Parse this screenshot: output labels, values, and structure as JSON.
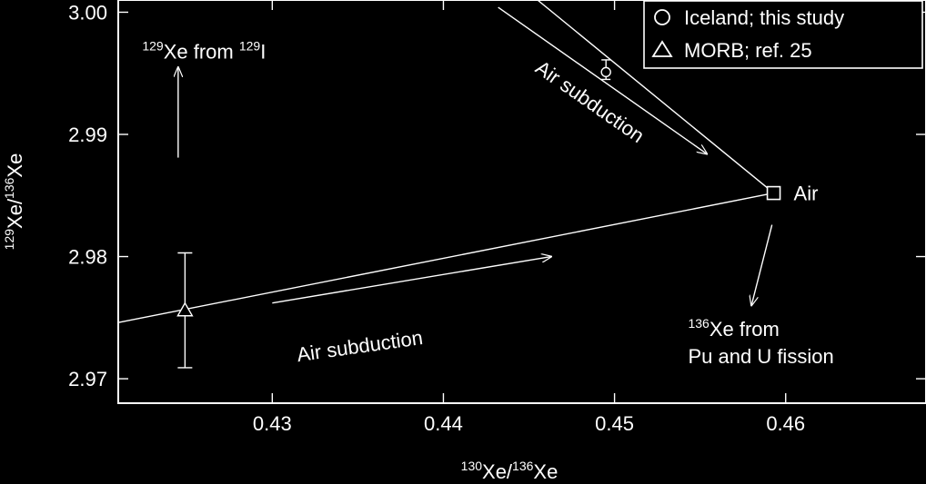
{
  "chart_data": {
    "type": "scatter",
    "xlabel": {
      "sup1": "130",
      "main1": "Xe/",
      "sup2": "136",
      "main2": "Xe"
    },
    "ylabel": {
      "sup1": "129",
      "main1": "Xe/",
      "sup2": "136",
      "main2": "Xe"
    },
    "xlim": [
      0.421,
      0.4682
    ],
    "ylim": [
      2.968,
      3.001
    ],
    "xticks": [
      0.43,
      0.44,
      0.45,
      0.46
    ],
    "yticks": [
      2.97,
      2.98,
      2.99,
      3.0
    ],
    "xtick_labels": [
      "0.43",
      "0.44",
      "0.45",
      "0.46"
    ],
    "ytick_labels": [
      "2.97",
      "2.98",
      "2.99",
      "3.00"
    ],
    "grid": false,
    "legend": {
      "position": "top-right",
      "entries": [
        {
          "marker": "circle",
          "label": "Iceland; this study"
        },
        {
          "marker": "triangle",
          "label": "MORB; ref. 25"
        }
      ]
    },
    "series": [
      {
        "name": "Iceland; this study",
        "marker": "circle",
        "points": [
          {
            "x": 0.4495,
            "y": 2.9951,
            "yerr_low": 2.9945,
            "yerr_high": 2.9961
          }
        ]
      },
      {
        "name": "MORB; ref. 25",
        "marker": "triangle",
        "points": [
          {
            "x": 0.4249,
            "y": 2.9756,
            "yerr_low": 2.9709,
            "yerr_high": 2.9803
          }
        ]
      }
    ],
    "reference_points": [
      {
        "name": "Air",
        "label": "Air",
        "marker": "square",
        "x": 0.4593,
        "y": 2.9852
      }
    ],
    "mixing_lines": [
      {
        "from": {
          "x": 0.421,
          "y": 2.9746
        },
        "to": {
          "x": 0.4593,
          "y": 2.9852
        }
      },
      {
        "from": {
          "x": 0.4455,
          "y": 3.001
        },
        "to": {
          "x": 0.4593,
          "y": 2.9852
        }
      }
    ],
    "annotations": [
      {
        "id": "i129",
        "sup": "129",
        "main": "Xe from ",
        "sup2": "129",
        "main2": "I",
        "x": 0.4224,
        "y": 2.9962,
        "arrow": {
          "from": {
            "x": 0.4245,
            "y": 2.9881
          },
          "to": {
            "x": 0.4245,
            "y": 2.9955
          }
        }
      },
      {
        "id": "fission",
        "sup": "136",
        "main": "Xe from",
        "line2": "Pu and U fission",
        "x": 0.4543,
        "y": 2.9735,
        "arrow": {
          "from": {
            "x": 0.4592,
            "y": 2.9826
          },
          "to": {
            "x": 0.458,
            "y": 2.976
          }
        }
      },
      {
        "id": "airsub-lower",
        "text": "Air subduction",
        "x": 0.4315,
        "y": 2.9714,
        "rotate": -8,
        "arrow": {
          "from": {
            "x": 0.43,
            "y": 2.9762
          },
          "to": {
            "x": 0.4463,
            "y": 2.98
          }
        }
      },
      {
        "id": "airsub-upper",
        "text": "Air subduction",
        "x": 0.4453,
        "y": 2.9952,
        "rotate": 35,
        "arrow": {
          "from": {
            "x": 0.4432,
            "y": 3.0004
          },
          "to": {
            "x": 0.4554,
            "y": 2.9884
          }
        }
      }
    ]
  }
}
